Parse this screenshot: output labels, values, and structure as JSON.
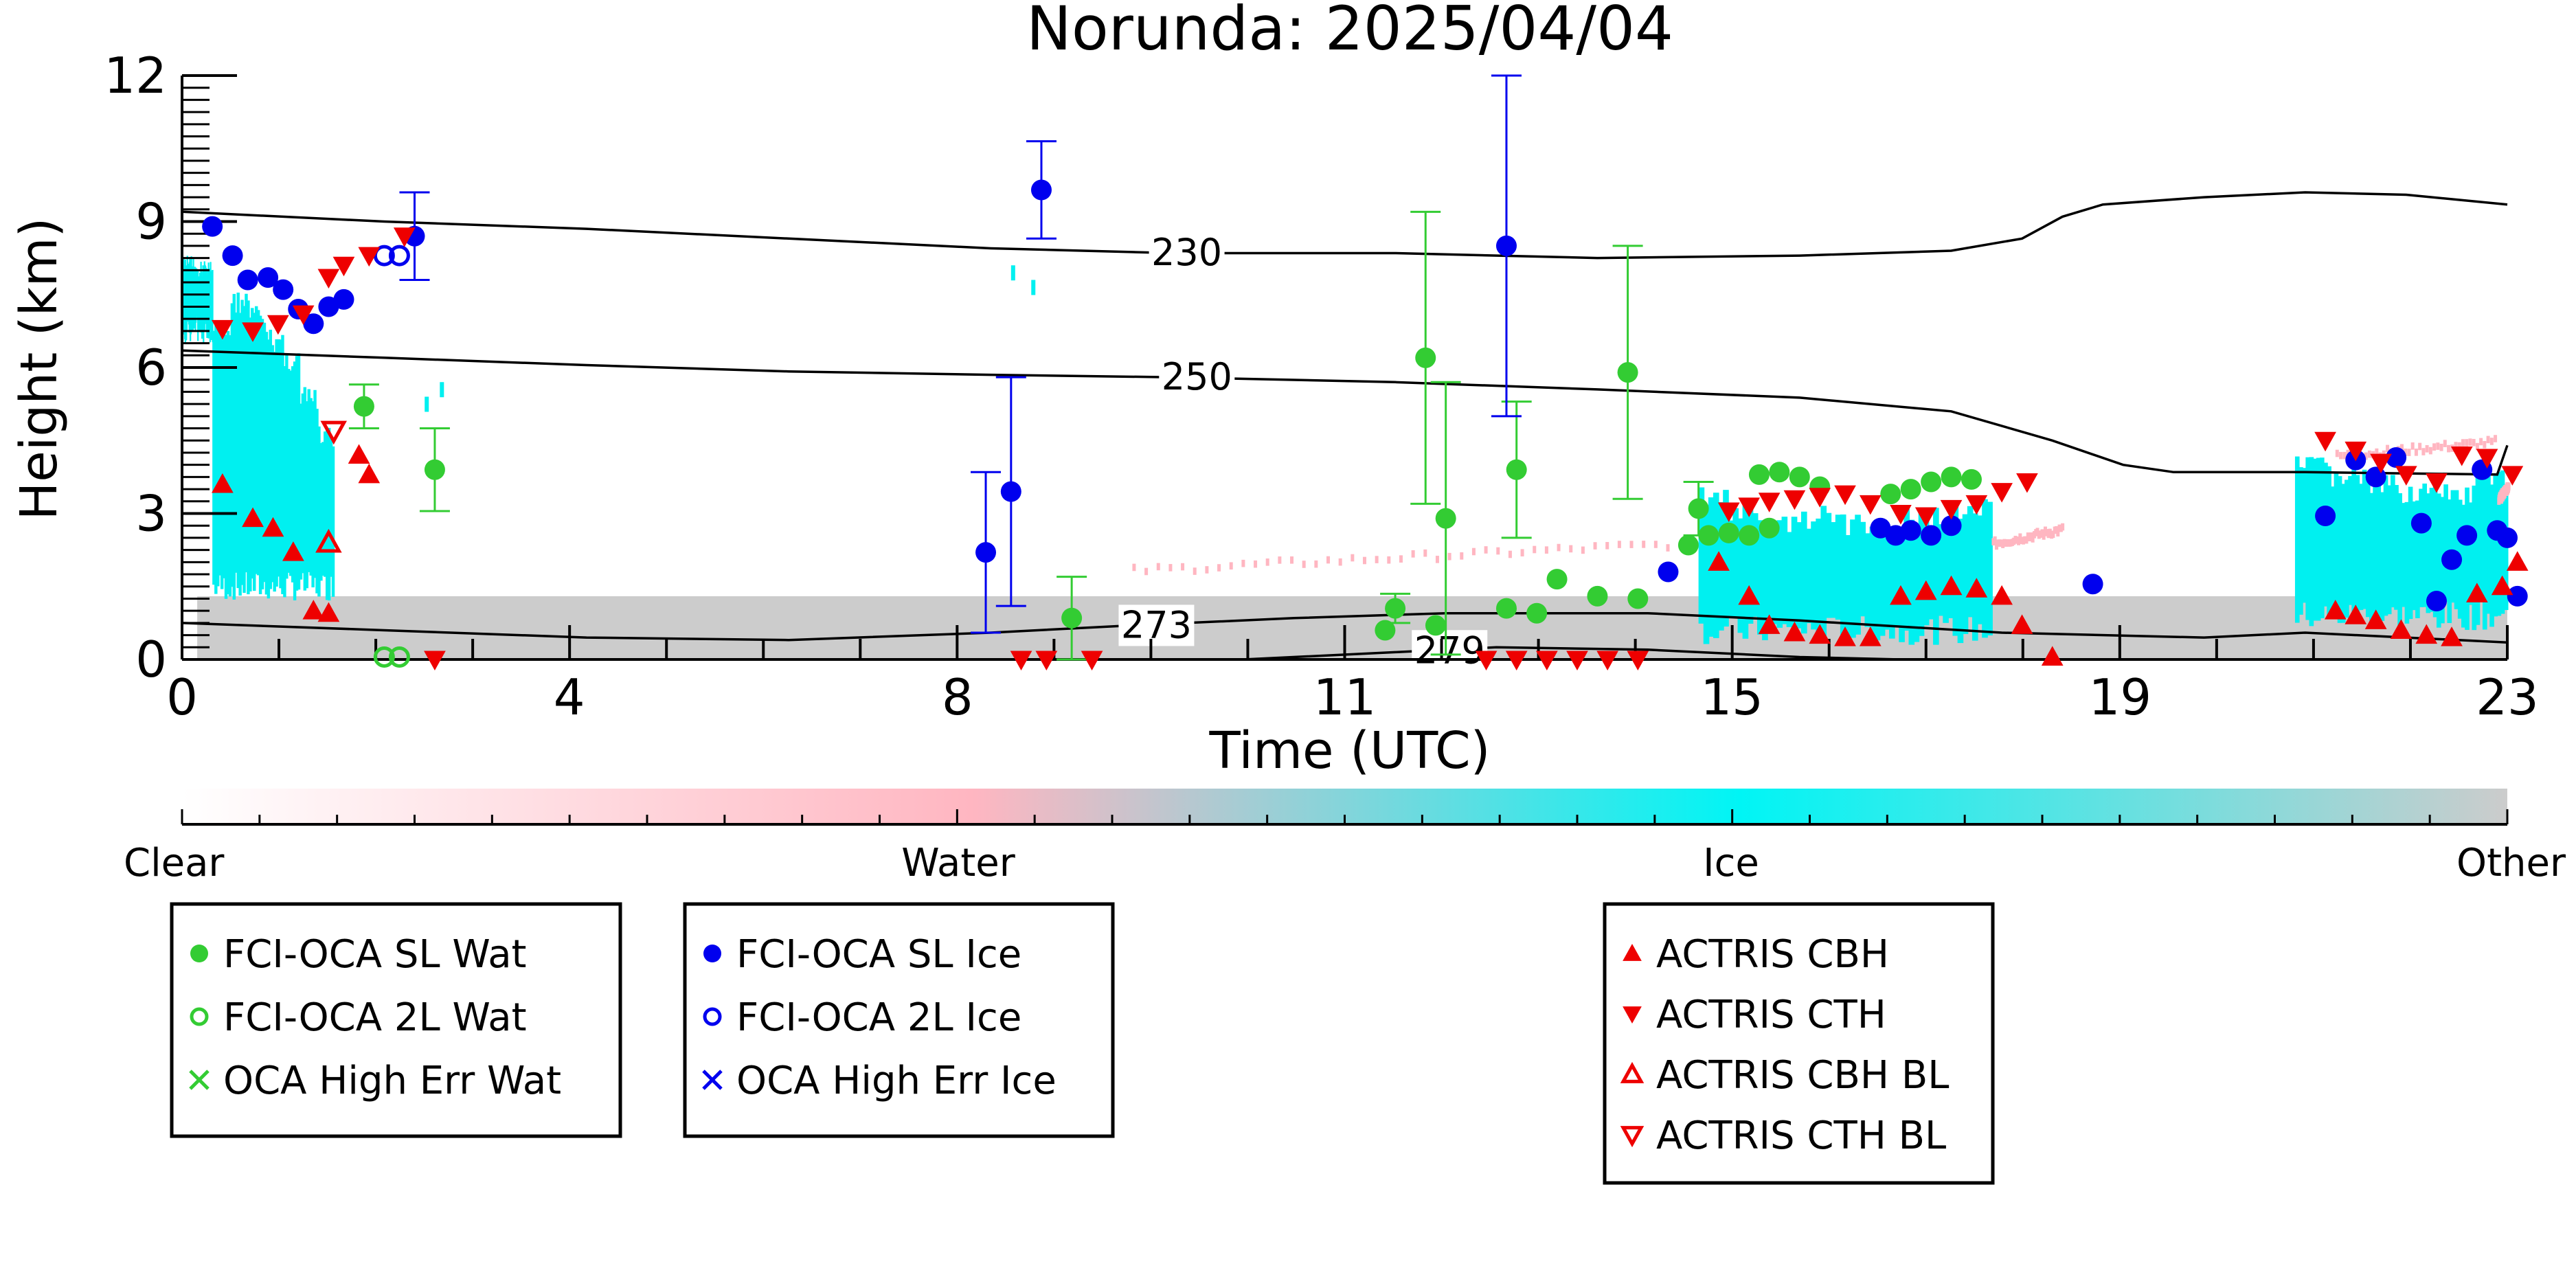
{
  "chart_data": {
    "type": "scatter",
    "title": "Norunda: 2025/04/04",
    "xlabel": "Time (UTC)",
    "ylabel": "Height (km)",
    "xlim": [
      0,
      23
    ],
    "ylim": [
      0,
      12
    ],
    "x_ticks": [
      "0",
      "4",
      "8",
      "11",
      "15",
      "19",
      "23"
    ],
    "x_tick_values": [
      0,
      3.83,
      7.67,
      11.5,
      15.33,
      19.17,
      23
    ],
    "y_ticks": [
      "0",
      "3",
      "6",
      "9",
      "12"
    ],
    "y_tick_values": [
      0,
      3,
      6,
      9,
      12
    ],
    "colors": {
      "wat": "#33cc33",
      "ice": "#0000ee",
      "actris": "#ee0000",
      "cloud_ice": "#00f0f0",
      "cloud_water": "#ffb6c1",
      "cloud_other": "#cccccc"
    },
    "colorbar": {
      "labels": [
        "Clear",
        "Water",
        "Ice",
        "Other"
      ],
      "stops": [
        "#ffffff",
        "#ffb6c1",
        "#00f5f5",
        "#cccccc"
      ]
    },
    "temperature_contours": [
      {
        "label": "230",
        "label_x": 9.7,
        "points": [
          [
            0,
            9.2
          ],
          [
            2,
            9.0
          ],
          [
            4,
            8.85
          ],
          [
            6,
            8.65
          ],
          [
            8,
            8.45
          ],
          [
            9.8,
            8.35
          ],
          [
            12,
            8.35
          ],
          [
            14,
            8.25
          ],
          [
            16,
            8.3
          ],
          [
            17.5,
            8.4
          ],
          [
            18.2,
            8.65
          ],
          [
            18.6,
            9.1
          ],
          [
            19,
            9.35
          ],
          [
            20,
            9.5
          ],
          [
            21,
            9.6
          ],
          [
            22,
            9.55
          ],
          [
            23,
            9.35
          ]
        ]
      },
      {
        "label": "250",
        "label_x": 9.8,
        "points": [
          [
            0,
            6.35
          ],
          [
            2,
            6.2
          ],
          [
            4,
            6.05
          ],
          [
            6,
            5.92
          ],
          [
            8,
            5.85
          ],
          [
            9.8,
            5.8
          ],
          [
            12,
            5.7
          ],
          [
            14,
            5.55
          ],
          [
            16,
            5.38
          ],
          [
            17.5,
            5.1
          ],
          [
            18.5,
            4.5
          ],
          [
            19.2,
            4.0
          ],
          [
            19.7,
            3.85
          ],
          [
            21,
            3.85
          ],
          [
            22.9,
            3.8
          ],
          [
            23,
            4.4
          ]
        ]
      },
      {
        "label": "273",
        "label_x": 9.4,
        "points": [
          [
            0,
            0.75
          ],
          [
            2,
            0.6
          ],
          [
            4,
            0.45
          ],
          [
            6,
            0.4
          ],
          [
            8,
            0.55
          ],
          [
            9.4,
            0.7
          ],
          [
            11,
            0.85
          ],
          [
            12.5,
            0.95
          ],
          [
            14.5,
            0.95
          ],
          [
            16,
            0.8
          ],
          [
            18,
            0.55
          ],
          [
            20,
            0.45
          ],
          [
            21,
            0.55
          ],
          [
            22,
            0.45
          ],
          [
            23,
            0.35
          ]
        ]
      },
      {
        "label": "279",
        "label_x": 12.3,
        "points": [
          [
            10.5,
            0.0
          ],
          [
            12,
            0.15
          ],
          [
            13,
            0.25
          ],
          [
            14.5,
            0.2
          ],
          [
            16,
            0.05
          ],
          [
            17,
            0.0
          ]
        ]
      }
    ],
    "series": [
      {
        "name": "FCI-OCA SL Wat",
        "marker": "filled-circle",
        "color": "#33cc33",
        "points": [
          [
            1.8,
            5.2,
            0.45
          ],
          [
            2.5,
            3.9,
            0.85
          ],
          [
            8.8,
            0.85,
            0.85
          ],
          [
            11.9,
            0.6,
            0
          ],
          [
            12.0,
            1.05,
            0.3
          ],
          [
            12.3,
            6.2,
            3.0
          ],
          [
            12.4,
            0.7,
            0
          ],
          [
            12.5,
            2.9,
            2.8
          ],
          [
            13.1,
            1.05,
            0
          ],
          [
            13.2,
            3.9,
            1.4
          ],
          [
            13.4,
            0.95,
            0
          ],
          [
            13.6,
            1.65,
            0
          ],
          [
            14.0,
            1.3,
            0
          ],
          [
            14.4,
            1.25,
            0
          ],
          [
            14.3,
            5.9,
            2.6
          ],
          [
            15.0,
            3.1,
            0.55
          ],
          [
            14.9,
            2.35,
            0
          ],
          [
            15.1,
            2.55,
            0
          ],
          [
            15.3,
            2.6,
            0
          ],
          [
            15.5,
            2.55,
            0
          ],
          [
            15.7,
            2.7,
            0
          ],
          [
            15.6,
            3.8,
            0
          ],
          [
            15.8,
            3.85,
            0
          ],
          [
            16.0,
            3.75,
            0
          ],
          [
            16.2,
            3.55,
            0
          ],
          [
            16.9,
            3.4,
            0
          ],
          [
            17.1,
            3.5,
            0
          ],
          [
            17.3,
            3.65,
            0
          ],
          [
            17.5,
            3.75,
            0
          ],
          [
            17.7,
            3.7,
            0
          ]
        ]
      },
      {
        "name": "FCI-OCA 2L Wat",
        "marker": "open-circle",
        "color": "#33cc33",
        "points": [
          [
            2.0,
            0.05
          ],
          [
            2.15,
            0.05
          ]
        ]
      },
      {
        "name": "OCA High Err Wat",
        "marker": "x",
        "color": "#33cc33",
        "points": []
      },
      {
        "name": "FCI-OCA SL Ice",
        "marker": "filled-circle",
        "color": "#0000ee",
        "points": [
          [
            0.3,
            8.9,
            0
          ],
          [
            0.5,
            8.3,
            0
          ],
          [
            0.65,
            7.8,
            0
          ],
          [
            0.85,
            7.85,
            0
          ],
          [
            1.0,
            7.6,
            0
          ],
          [
            1.15,
            7.2,
            0
          ],
          [
            1.3,
            6.9,
            0
          ],
          [
            1.45,
            7.25,
            0
          ],
          [
            1.6,
            7.4,
            0
          ],
          [
            2.3,
            8.7,
            0.9
          ],
          [
            7.95,
            2.2,
            1.65
          ],
          [
            8.2,
            3.45,
            2.35
          ],
          [
            8.5,
            9.65,
            1.0
          ],
          [
            13.1,
            8.5,
            3.5
          ],
          [
            14.7,
            1.8,
            0
          ],
          [
            16.8,
            2.7,
            0
          ],
          [
            16.95,
            2.55,
            0
          ],
          [
            17.1,
            2.65,
            0
          ],
          [
            17.3,
            2.55,
            0
          ],
          [
            17.5,
            2.75,
            0
          ],
          [
            18.9,
            1.55,
            0
          ],
          [
            21.2,
            2.95,
            0
          ],
          [
            21.5,
            4.1,
            0
          ],
          [
            21.7,
            3.75,
            0
          ],
          [
            21.9,
            4.15,
            0
          ],
          [
            22.15,
            2.8,
            0
          ],
          [
            22.3,
            1.2,
            0
          ],
          [
            22.45,
            2.05,
            0
          ],
          [
            22.6,
            2.55,
            0
          ],
          [
            22.75,
            3.9,
            0
          ],
          [
            22.9,
            2.65,
            0
          ],
          [
            23.0,
            2.5,
            0
          ],
          [
            23.1,
            1.3,
            0
          ]
        ]
      },
      {
        "name": "FCI-OCA 2L Ice",
        "marker": "open-circle",
        "color": "#0000ee",
        "points": [
          [
            2.0,
            8.3
          ],
          [
            2.15,
            8.3
          ]
        ]
      },
      {
        "name": "OCA High Err Ice",
        "marker": "x",
        "color": "#0000ee",
        "points": []
      },
      {
        "name": "ACTRIS CBH",
        "marker": "filled-triangle-up",
        "color": "#ee0000",
        "points": [
          [
            0.4,
            3.6
          ],
          [
            0.7,
            2.9
          ],
          [
            0.9,
            2.7
          ],
          [
            1.1,
            2.2
          ],
          [
            1.3,
            1.0
          ],
          [
            1.45,
            0.95
          ],
          [
            1.75,
            4.2
          ],
          [
            1.85,
            3.8
          ],
          [
            15.2,
            2.0
          ],
          [
            15.5,
            1.3
          ],
          [
            15.7,
            0.7
          ],
          [
            15.95,
            0.55
          ],
          [
            16.2,
            0.5
          ],
          [
            16.45,
            0.45
          ],
          [
            16.7,
            0.45
          ],
          [
            17.0,
            1.3
          ],
          [
            17.25,
            1.4
          ],
          [
            17.5,
            1.5
          ],
          [
            17.75,
            1.45
          ],
          [
            18.0,
            1.3
          ],
          [
            18.2,
            0.7
          ],
          [
            18.5,
            0.05
          ],
          [
            21.3,
            1.0
          ],
          [
            21.5,
            0.9
          ],
          [
            21.7,
            0.8
          ],
          [
            21.95,
            0.6
          ],
          [
            22.2,
            0.5
          ],
          [
            22.45,
            0.45
          ],
          [
            22.7,
            1.35
          ],
          [
            22.95,
            1.5
          ],
          [
            23.1,
            2.0
          ]
        ]
      },
      {
        "name": "ACTRIS CTH",
        "marker": "filled-triangle-down",
        "color": "#ee0000",
        "points": [
          [
            0.4,
            6.8
          ],
          [
            0.7,
            6.75
          ],
          [
            0.95,
            6.9
          ],
          [
            1.2,
            7.1
          ],
          [
            1.45,
            7.85
          ],
          [
            1.6,
            8.1
          ],
          [
            1.85,
            8.3
          ],
          [
            2.2,
            8.7
          ],
          [
            8.3,
            0.0
          ],
          [
            8.55,
            0.0
          ],
          [
            9.0,
            0.0
          ],
          [
            12.9,
            0.0
          ],
          [
            13.2,
            0.0
          ],
          [
            13.5,
            0.0
          ],
          [
            13.8,
            0.0
          ],
          [
            14.1,
            0.0
          ],
          [
            14.4,
            0.0
          ],
          [
            15.3,
            3.05
          ],
          [
            15.5,
            3.15
          ],
          [
            15.7,
            3.25
          ],
          [
            15.95,
            3.3
          ],
          [
            16.2,
            3.35
          ],
          [
            16.45,
            3.4
          ],
          [
            16.7,
            3.2
          ],
          [
            17.0,
            3.0
          ],
          [
            17.25,
            2.95
          ],
          [
            17.5,
            3.1
          ],
          [
            17.75,
            3.2
          ],
          [
            18.0,
            3.45
          ],
          [
            18.25,
            3.65
          ],
          [
            21.2,
            4.5
          ],
          [
            21.5,
            4.3
          ],
          [
            21.75,
            4.05
          ],
          [
            22.0,
            3.8
          ],
          [
            22.3,
            3.65
          ],
          [
            22.55,
            4.2
          ],
          [
            22.8,
            4.15
          ],
          [
            23.05,
            3.8
          ],
          [
            2.5,
            0.0
          ]
        ]
      },
      {
        "name": "ACTRIS CBH BL",
        "marker": "open-triangle-up",
        "color": "#ee0000",
        "points": [
          [
            1.45,
            2.4
          ]
        ]
      },
      {
        "name": "ACTRIS CTH BL",
        "marker": "open-triangle-down",
        "color": "#ee0000",
        "points": [
          [
            1.5,
            4.7
          ]
        ]
      }
    ],
    "legend_groups": [
      [
        "FCI-OCA SL Wat",
        "FCI-OCA 2L Wat",
        "OCA High Err Wat"
      ],
      [
        "FCI-OCA SL Ice",
        "FCI-OCA 2L Ice",
        "OCA High Err Ice"
      ],
      [
        "ACTRIS CBH",
        "ACTRIS CTH",
        "ACTRIS CBH BL",
        "ACTRIS CTH BL"
      ]
    ],
    "legend_placement": "bottom",
    "grid": false
  }
}
